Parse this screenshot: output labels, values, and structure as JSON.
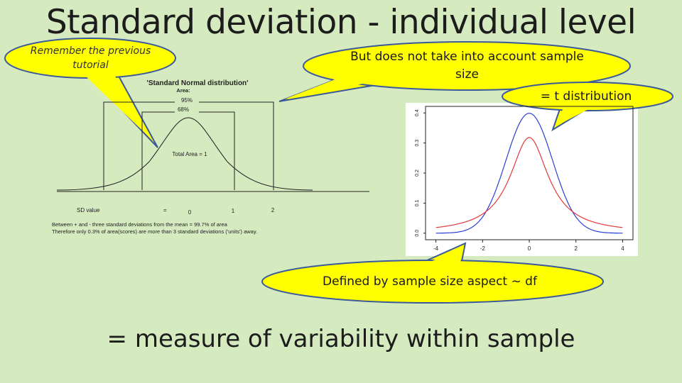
{
  "title": "Standard deviation - individual level",
  "bottom_statement": "= measure of variability within sample",
  "callouts": {
    "remember": "Remember the previous tutorial",
    "sample_size": "But does not take into account sample size",
    "t_distribution": "= t distribution",
    "defined_by": "Defined by sample size aspect ~ df"
  },
  "normal_figure": {
    "title": "'Standard Normal distribution'",
    "area_label": "Area:",
    "pct_95": "95%",
    "pct_68": "68%",
    "total_area": "Total Area = 1",
    "sd_label": "SD value",
    "eq_sign": "=",
    "sd_ticks": [
      "0",
      "1",
      "2"
    ],
    "note_line1": "Between + and - three standard deviations from the mean = 99.7% of area",
    "note_line2": "Therefore only 0.3% of area(scores) are more than 3 standard deviations ('units') away."
  },
  "t_plot": {
    "y_ticks": [
      "0.0",
      "0.1",
      "0.2",
      "0.3",
      "0.4"
    ],
    "x_ticks": [
      "-4",
      "-2",
      "0",
      "2",
      "4"
    ],
    "series_colors": {
      "normal": "#2a3fd6",
      "t": "#e03a3a"
    }
  },
  "colors": {
    "background": "#d6eac0",
    "callout_fill": "#ffff00",
    "callout_stroke": "#3b5a9a"
  }
}
